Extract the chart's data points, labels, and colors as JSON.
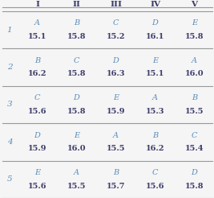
{
  "col_headers": [
    "I",
    "II",
    "III",
    "IV",
    "V"
  ],
  "row_headers": [
    "1",
    "2",
    "3",
    "4",
    "5"
  ],
  "vendors": [
    [
      "A",
      "B",
      "C",
      "D",
      "E"
    ],
    [
      "B",
      "C",
      "D",
      "E",
      "A"
    ],
    [
      "C",
      "D",
      "E",
      "A",
      "B"
    ],
    [
      "D",
      "E",
      "A",
      "B",
      "C"
    ],
    [
      "E",
      "A",
      "B",
      "C",
      "D"
    ]
  ],
  "values": [
    [
      "15.1",
      "15.8",
      "15.2",
      "16.1",
      "15.8"
    ],
    [
      "16.2",
      "15.8",
      "16.3",
      "15.1",
      "16.0"
    ],
    [
      "15.6",
      "15.8",
      "15.9",
      "15.3",
      "15.5"
    ],
    [
      "15.9",
      "16.0",
      "15.5",
      "16.2",
      "15.4"
    ],
    [
      "15.6",
      "15.5",
      "15.7",
      "15.6",
      "15.8"
    ]
  ],
  "vendor_color": "#5b8db8",
  "value_color": "#3a3a6a",
  "header_color": "#3a3a6a",
  "row_header_color": "#5b8db8",
  "bg_color": "#f5f5f5",
  "line_color": "#999999",
  "header_fontsize": 7.5,
  "cell_fontsize": 7.0,
  "row_header_fontsize": 7.5
}
